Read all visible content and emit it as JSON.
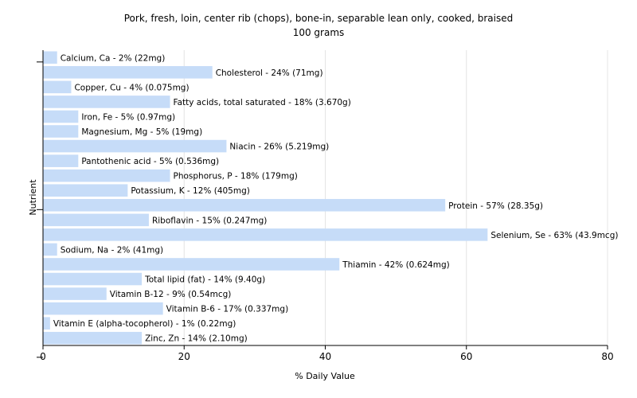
{
  "chart_data": {
    "type": "bar",
    "orientation": "horizontal",
    "title": "Pork, fresh, loin, center rib (chops), bone-in, separable lean only, cooked, braised",
    "subtitle": "100 grams",
    "xlabel": "% Daily Value",
    "ylabel": "Nutrient",
    "xlim": [
      0,
      80
    ],
    "xticks": [
      0,
      20,
      40,
      60,
      80
    ],
    "grid": true,
    "bar_color": "#c6dcf8",
    "categories": [
      "Calcium, Ca",
      "Cholesterol",
      "Copper, Cu",
      "Fatty acids, total saturated",
      "Iron, Fe",
      "Magnesium, Mg",
      "Niacin",
      "Pantothenic acid",
      "Phosphorus, P",
      "Potassium, K",
      "Protein",
      "Riboflavin",
      "Selenium, Se",
      "Sodium, Na",
      "Thiamin",
      "Total lipid (fat)",
      "Vitamin B-12",
      "Vitamin B-6",
      "Vitamin E (alpha-tocopherol)",
      "Zinc, Zn"
    ],
    "values": [
      2,
      24,
      4,
      18,
      5,
      5,
      26,
      5,
      18,
      12,
      57,
      15,
      63,
      2,
      42,
      14,
      9,
      17,
      1,
      14
    ],
    "labels": [
      "Calcium, Ca - 2% (22mg)",
      "Cholesterol - 24% (71mg)",
      "Copper, Cu - 4% (0.075mg)",
      "Fatty acids, total saturated - 18% (3.670g)",
      "Iron, Fe - 5% (0.97mg)",
      "Magnesium, Mg - 5% (19mg)",
      "Niacin - 26% (5.219mg)",
      "Pantothenic acid - 5% (0.536mg)",
      "Phosphorus, P - 18% (179mg)",
      "Potassium, K - 12% (405mg)",
      "Protein - 57% (28.35g)",
      "Riboflavin - 15% (0.247mg)",
      "Selenium, Se - 63% (43.9mcg)",
      "Sodium, Na - 2% (41mg)",
      "Thiamin - 42% (0.624mg)",
      "Total lipid (fat) - 14% (9.40g)",
      "Vitamin B-12 - 9% (0.54mcg)",
      "Vitamin B-6 - 17% (0.337mg)",
      "Vitamin E (alpha-tocopherol) - 1% (0.22mg)",
      "Zinc, Zn - 14% (2.10mg)"
    ]
  }
}
